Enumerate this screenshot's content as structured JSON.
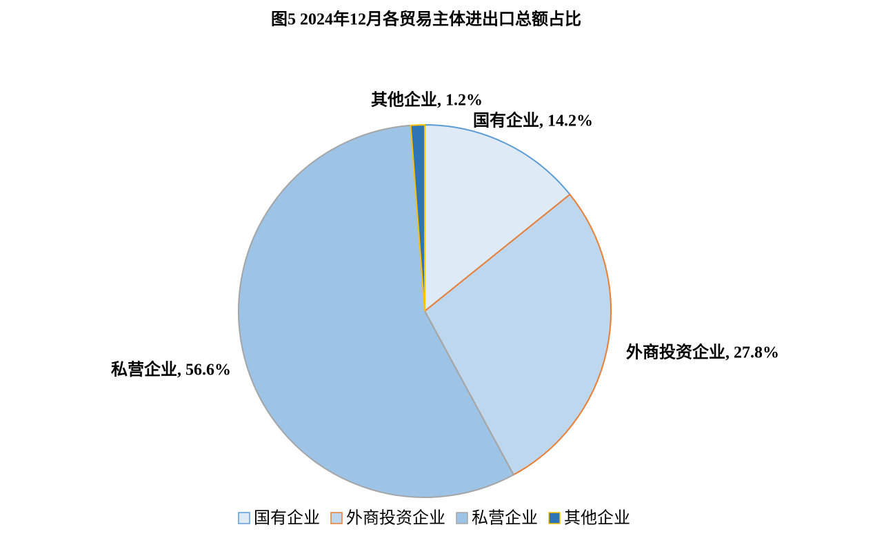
{
  "chart_data": {
    "type": "pie",
    "title": "图5 2024年12月各贸易主体进出口总额占比",
    "categories": [
      "国有企业",
      "外商投资企业",
      "私营企业",
      "其他企业"
    ],
    "values": [
      14.2,
      27.8,
      56.6,
      1.2
    ],
    "value_labels": [
      "国有企业, 14.2%",
      "外商投资企业, 27.8%",
      "私营企业, 56.6%",
      "其他企业, 1.2%"
    ],
    "colors": [
      "#DEEBF7",
      "#BDD7EE",
      "#9DC3E6",
      "#2E75B6"
    ],
    "edgecolors": [
      "#5B9BD5",
      "#ED7D31",
      "#A5A5A5",
      "#FFC000"
    ],
    "legend": "bottom"
  }
}
